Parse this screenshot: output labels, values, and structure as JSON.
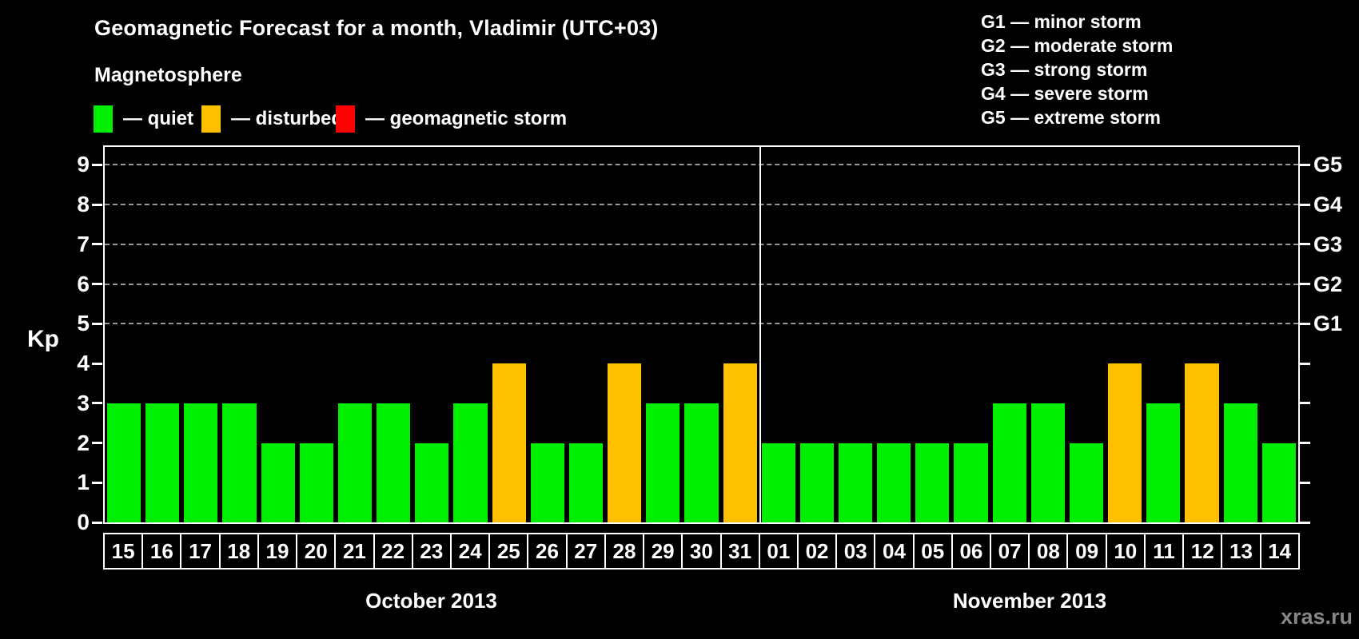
{
  "title": "Geomagnetic Forecast for a month, Vladimir (UTC+03)",
  "magnetosphere_legend": {
    "title": "Magnetosphere",
    "items": [
      {
        "status": "quiet",
        "label": "— quiet"
      },
      {
        "status": "disturbed",
        "label": "— disturbed"
      },
      {
        "status": "storm",
        "label": "— geomagnetic storm"
      }
    ]
  },
  "g_scale_legend": [
    "G1 — minor storm",
    "G2 — moderate storm",
    "G3 — strong storm",
    "G4 — severe storm",
    "G5 — extreme storm"
  ],
  "colors": {
    "quiet": "#00ee00",
    "disturbed": "#ffc000",
    "storm": "#ff0000",
    "background": "#000000",
    "text": "#ffffff",
    "grid": "#999999",
    "watermark": "#878787"
  },
  "watermark": "xras.ru",
  "chart_data": {
    "type": "bar",
    "title": "Geomagnetic Forecast for a month, Vladimir (UTC+03)",
    "ylabel": "Kp",
    "ylim": [
      0,
      9.45
    ],
    "yticks": [
      0,
      1,
      2,
      3,
      4,
      5,
      6,
      7,
      8,
      9
    ],
    "grid_on": true,
    "grid_kp_levels": [
      5,
      6,
      7,
      8,
      9
    ],
    "right_axis": [
      {
        "kp": 5,
        "label": "G1"
      },
      {
        "kp": 6,
        "label": "G2"
      },
      {
        "kp": 7,
        "label": "G3"
      },
      {
        "kp": 8,
        "label": "G4"
      },
      {
        "kp": 9,
        "label": "G5"
      }
    ],
    "months": [
      {
        "label": "October 2013",
        "days": [
          {
            "day": "15",
            "kp": 3,
            "status": "quiet"
          },
          {
            "day": "16",
            "kp": 3,
            "status": "quiet"
          },
          {
            "day": "17",
            "kp": 3,
            "status": "quiet"
          },
          {
            "day": "18",
            "kp": 3,
            "status": "quiet"
          },
          {
            "day": "19",
            "kp": 2,
            "status": "quiet"
          },
          {
            "day": "20",
            "kp": 2,
            "status": "quiet"
          },
          {
            "day": "21",
            "kp": 3,
            "status": "quiet"
          },
          {
            "day": "22",
            "kp": 3,
            "status": "quiet"
          },
          {
            "day": "23",
            "kp": 2,
            "status": "quiet"
          },
          {
            "day": "24",
            "kp": 3,
            "status": "quiet"
          },
          {
            "day": "25",
            "kp": 4,
            "status": "disturbed"
          },
          {
            "day": "26",
            "kp": 2,
            "status": "quiet"
          },
          {
            "day": "27",
            "kp": 2,
            "status": "quiet"
          },
          {
            "day": "28",
            "kp": 4,
            "status": "disturbed"
          },
          {
            "day": "29",
            "kp": 3,
            "status": "quiet"
          },
          {
            "day": "30",
            "kp": 3,
            "status": "quiet"
          },
          {
            "day": "31",
            "kp": 4,
            "status": "disturbed"
          }
        ]
      },
      {
        "label": "November 2013",
        "days": [
          {
            "day": "01",
            "kp": 2,
            "status": "quiet"
          },
          {
            "day": "02",
            "kp": 2,
            "status": "quiet"
          },
          {
            "day": "03",
            "kp": 2,
            "status": "quiet"
          },
          {
            "day": "04",
            "kp": 2,
            "status": "quiet"
          },
          {
            "day": "05",
            "kp": 2,
            "status": "quiet"
          },
          {
            "day": "06",
            "kp": 2,
            "status": "quiet"
          },
          {
            "day": "07",
            "kp": 3,
            "status": "quiet"
          },
          {
            "day": "08",
            "kp": 3,
            "status": "quiet"
          },
          {
            "day": "09",
            "kp": 2,
            "status": "quiet"
          },
          {
            "day": "10",
            "kp": 4,
            "status": "disturbed"
          },
          {
            "day": "11",
            "kp": 3,
            "status": "quiet"
          },
          {
            "day": "12",
            "kp": 4,
            "status": "disturbed"
          },
          {
            "day": "13",
            "kp": 3,
            "status": "quiet"
          },
          {
            "day": "14",
            "kp": 2,
            "status": "quiet"
          }
        ]
      }
    ]
  }
}
